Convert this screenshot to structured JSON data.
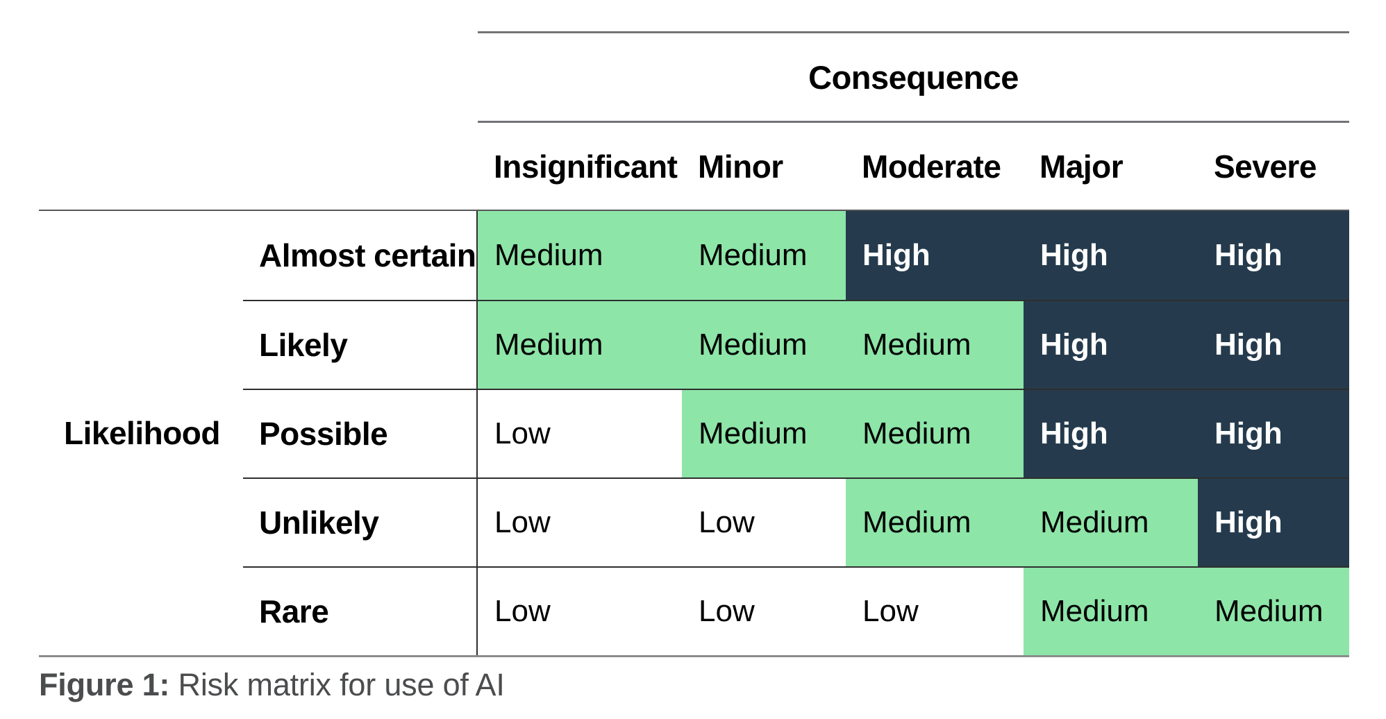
{
  "figure": {
    "caption_label": "Figure 1:",
    "caption_text": " Risk matrix for use of AI"
  },
  "matrix": {
    "consequence_axis_label": "Consequence",
    "likelihood_axis_label": "Likelihood",
    "consequence_levels": [
      "Insignificant",
      "Minor",
      "Moderate",
      "Major",
      "Severe"
    ],
    "rows": [
      {
        "label": "Almost certain",
        "cells": [
          {
            "value": "Medium",
            "level": "medium"
          },
          {
            "value": "Medium",
            "level": "medium"
          },
          {
            "value": "High",
            "level": "high"
          },
          {
            "value": "High",
            "level": "high"
          },
          {
            "value": "High",
            "level": "high"
          }
        ]
      },
      {
        "label": "Likely",
        "cells": [
          {
            "value": "Medium",
            "level": "medium"
          },
          {
            "value": "Medium",
            "level": "medium"
          },
          {
            "value": "Medium",
            "level": "medium"
          },
          {
            "value": "High",
            "level": "high"
          },
          {
            "value": "High",
            "level": "high"
          }
        ]
      },
      {
        "label": "Possible",
        "cells": [
          {
            "value": "Low",
            "level": "low"
          },
          {
            "value": "Medium",
            "level": "medium"
          },
          {
            "value": "Medium",
            "level": "medium"
          },
          {
            "value": "High",
            "level": "high"
          },
          {
            "value": "High",
            "level": "high"
          }
        ]
      },
      {
        "label": "Unlikely",
        "cells": [
          {
            "value": "Low",
            "level": "low"
          },
          {
            "value": "Low",
            "level": "low"
          },
          {
            "value": "Medium",
            "level": "medium"
          },
          {
            "value": "Medium",
            "level": "medium"
          },
          {
            "value": "High",
            "level": "high"
          }
        ]
      },
      {
        "label": "Rare",
        "cells": [
          {
            "value": "Low",
            "level": "low"
          },
          {
            "value": "Low",
            "level": "low"
          },
          {
            "value": "Low",
            "level": "low"
          },
          {
            "value": "Medium",
            "level": "medium"
          },
          {
            "value": "Medium",
            "level": "medium"
          }
        ]
      }
    ]
  },
  "colors": {
    "medium": "#8DE5A8",
    "high": "#253B4D",
    "low": "#FFFFFF",
    "caption_gray": "#4B4C4E"
  },
  "chart_data": {
    "type": "heatmap",
    "title": "Figure 1: Risk matrix for use of AI",
    "x_axis_label": "Consequence",
    "y_axis_label": "Likelihood",
    "x_categories": [
      "Insignificant",
      "Minor",
      "Moderate",
      "Major",
      "Severe"
    ],
    "y_categories": [
      "Almost certain",
      "Likely",
      "Possible",
      "Unlikely",
      "Rare"
    ],
    "values": [
      [
        "Medium",
        "Medium",
        "High",
        "High",
        "High"
      ],
      [
        "Medium",
        "Medium",
        "Medium",
        "High",
        "High"
      ],
      [
        "Low",
        "Medium",
        "Medium",
        "High",
        "High"
      ],
      [
        "Low",
        "Low",
        "Medium",
        "Medium",
        "High"
      ],
      [
        "Low",
        "Low",
        "Low",
        "Medium",
        "Medium"
      ]
    ],
    "value_color_map": {
      "Low": "#FFFFFF",
      "Medium": "#8DE5A8",
      "High": "#253B4D"
    },
    "legend": "none",
    "grid": "partial (row separators and label/data divider)"
  }
}
